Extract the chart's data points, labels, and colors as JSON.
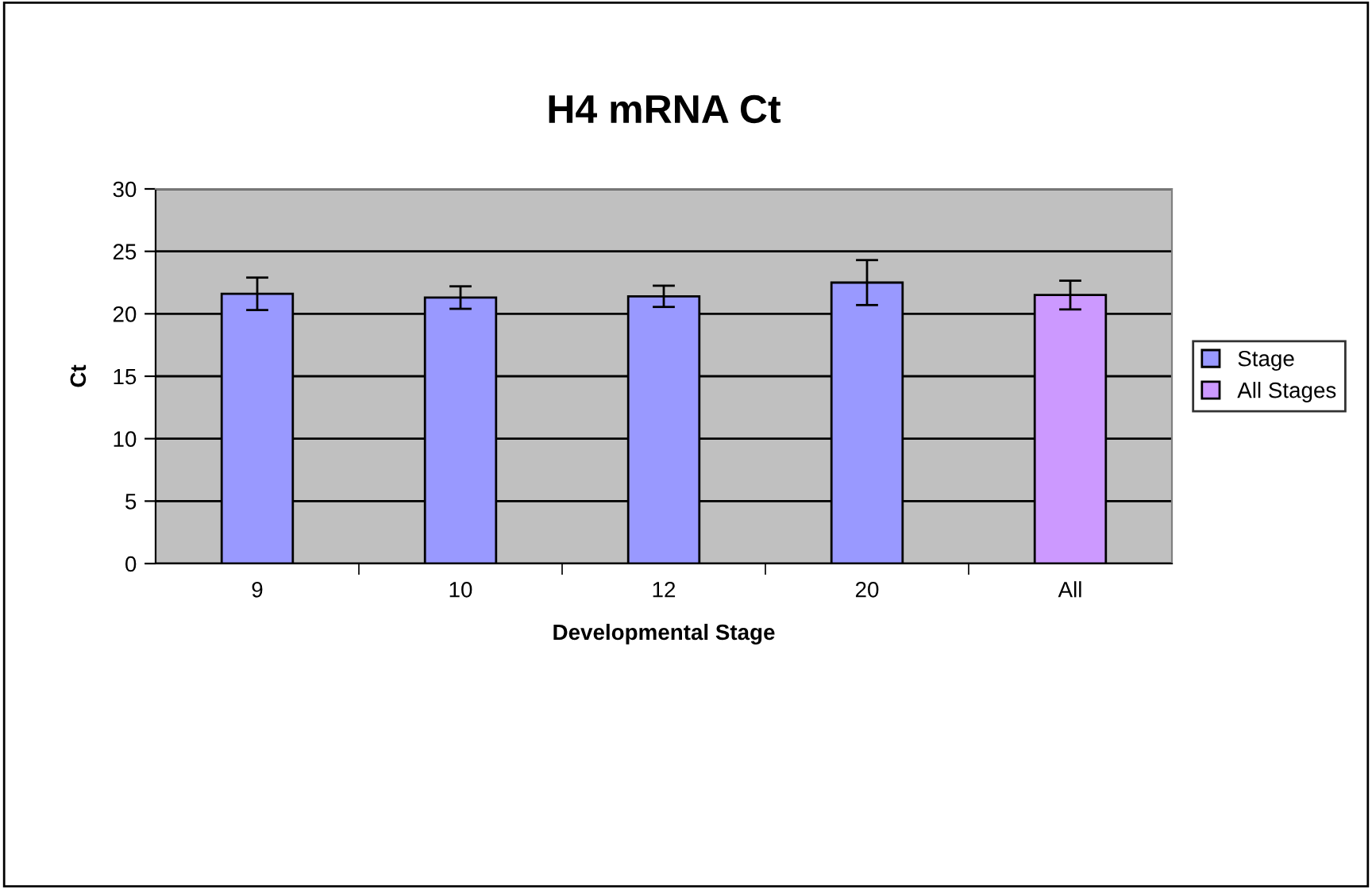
{
  "chart_data": {
    "type": "bar",
    "title": "H4 mRNA Ct",
    "xlabel": "Developmental Stage",
    "ylabel": "Ct",
    "categories": [
      "9",
      "10",
      "12",
      "20",
      "All"
    ],
    "series": [
      {
        "name": "Stage",
        "color": "#9999ff",
        "values": [
          21.6,
          21.3,
          21.4,
          22.5,
          null
        ],
        "errors": [
          1.3,
          0.9,
          0.85,
          1.8,
          null
        ]
      },
      {
        "name": "All Stages",
        "color": "#cc99ff",
        "values": [
          null,
          null,
          null,
          null,
          21.5
        ],
        "errors": [
          null,
          null,
          null,
          null,
          1.15
        ]
      }
    ],
    "ylim": [
      0,
      30
    ],
    "yticks": [
      0,
      5,
      10,
      15,
      20,
      25,
      30
    ],
    "grid": "y",
    "legend": "right"
  }
}
